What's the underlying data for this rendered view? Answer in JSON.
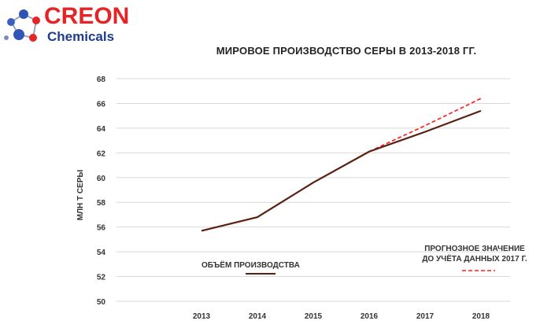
{
  "logo": {
    "line1_a": "CREON",
    "line2": "Chemicals",
    "colors": {
      "primary": "#e42426",
      "secondary": "#1f3b8f"
    }
  },
  "colors": {
    "actual_line": "#5a1f10",
    "forecast_line": "#ff1a1a",
    "grid": "#d9d9d9"
  },
  "chart_data": {
    "type": "line",
    "title": "МИРОВОЕ ПРОИЗВОДСТВО СЕРЫ В 2013-2018 ГГ.",
    "xlabel": "",
    "ylabel": "МЛН Т СЕРЫ",
    "ylim": [
      50,
      68
    ],
    "yticks": [
      50,
      52,
      54,
      56,
      58,
      60,
      62,
      64,
      66,
      68
    ],
    "categories": [
      "2013",
      "2014",
      "2015",
      "2016",
      "2017",
      "2018"
    ],
    "grid": true,
    "series": [
      {
        "name": "ОБЪЁМ ПРОИЗВОДСТВА",
        "style": "solid",
        "x": [
          "2013",
          "2014",
          "2015",
          "2016",
          "2017",
          "2018"
        ],
        "values": [
          55.7,
          56.8,
          59.6,
          62.1,
          63.7,
          65.4
        ]
      },
      {
        "name": "ПРОГНОЗНОЕ ЗНАЧЕНИЕ ДО УЧЁТА ДАННЫХ 2017 Г.",
        "name_lines": [
          "ПРОГНОЗНОЕ ЗНАЧЕНИЕ",
          "ДО УЧЁТА ДАННЫХ 2017 Г."
        ],
        "style": "dashed",
        "x": [
          "2016",
          "2017",
          "2018"
        ],
        "values": [
          62.1,
          64.2,
          66.4
        ]
      }
    ]
  }
}
